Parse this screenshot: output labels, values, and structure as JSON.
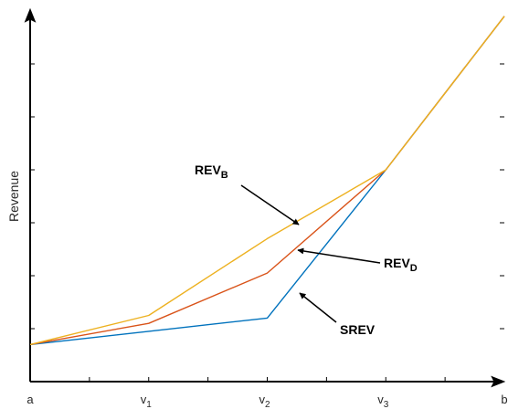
{
  "chart_data": {
    "type": "line",
    "title": "",
    "xlabel": "",
    "ylabel": "Revenue",
    "x_tick_labels": [
      {
        "x": 0,
        "base": "a",
        "sub": ""
      },
      {
        "x": 1,
        "base": "v",
        "sub": "1"
      },
      {
        "x": 2,
        "base": "v",
        "sub": "2"
      },
      {
        "x": 3,
        "base": "v",
        "sub": "3"
      },
      {
        "x": 4,
        "base": "b",
        "sub": ""
      }
    ],
    "xlim": [
      0,
      4
    ],
    "ylim": [
      0,
      7
    ],
    "grid": false,
    "series": [
      {
        "name": "SREV",
        "color": "#0072BD",
        "x": [
          0,
          1,
          2,
          3,
          4
        ],
        "y": [
          0.7,
          0.95,
          1.2,
          4.0,
          6.9
        ]
      },
      {
        "name": "REV_D",
        "color": "#D95319",
        "x": [
          0,
          1,
          2,
          3,
          4
        ],
        "y": [
          0.7,
          1.1,
          2.05,
          4.0,
          6.9
        ]
      },
      {
        "name": "REV_B",
        "color": "#EDB120",
        "x": [
          0,
          1,
          2,
          3,
          4
        ],
        "y": [
          0.7,
          1.25,
          2.7,
          4.0,
          6.9
        ]
      }
    ],
    "annotations": [
      {
        "id": "rev-b",
        "base": "REV",
        "sub": "B",
        "target_series": "REV_B",
        "target_x": 2.3
      },
      {
        "id": "rev-d",
        "base": "REV",
        "sub": "D",
        "target_series": "REV_D",
        "target_x": 2.3
      },
      {
        "id": "srev",
        "base": "SREV",
        "sub": "",
        "target_series": "SREV",
        "target_x": 2.3
      }
    ]
  }
}
